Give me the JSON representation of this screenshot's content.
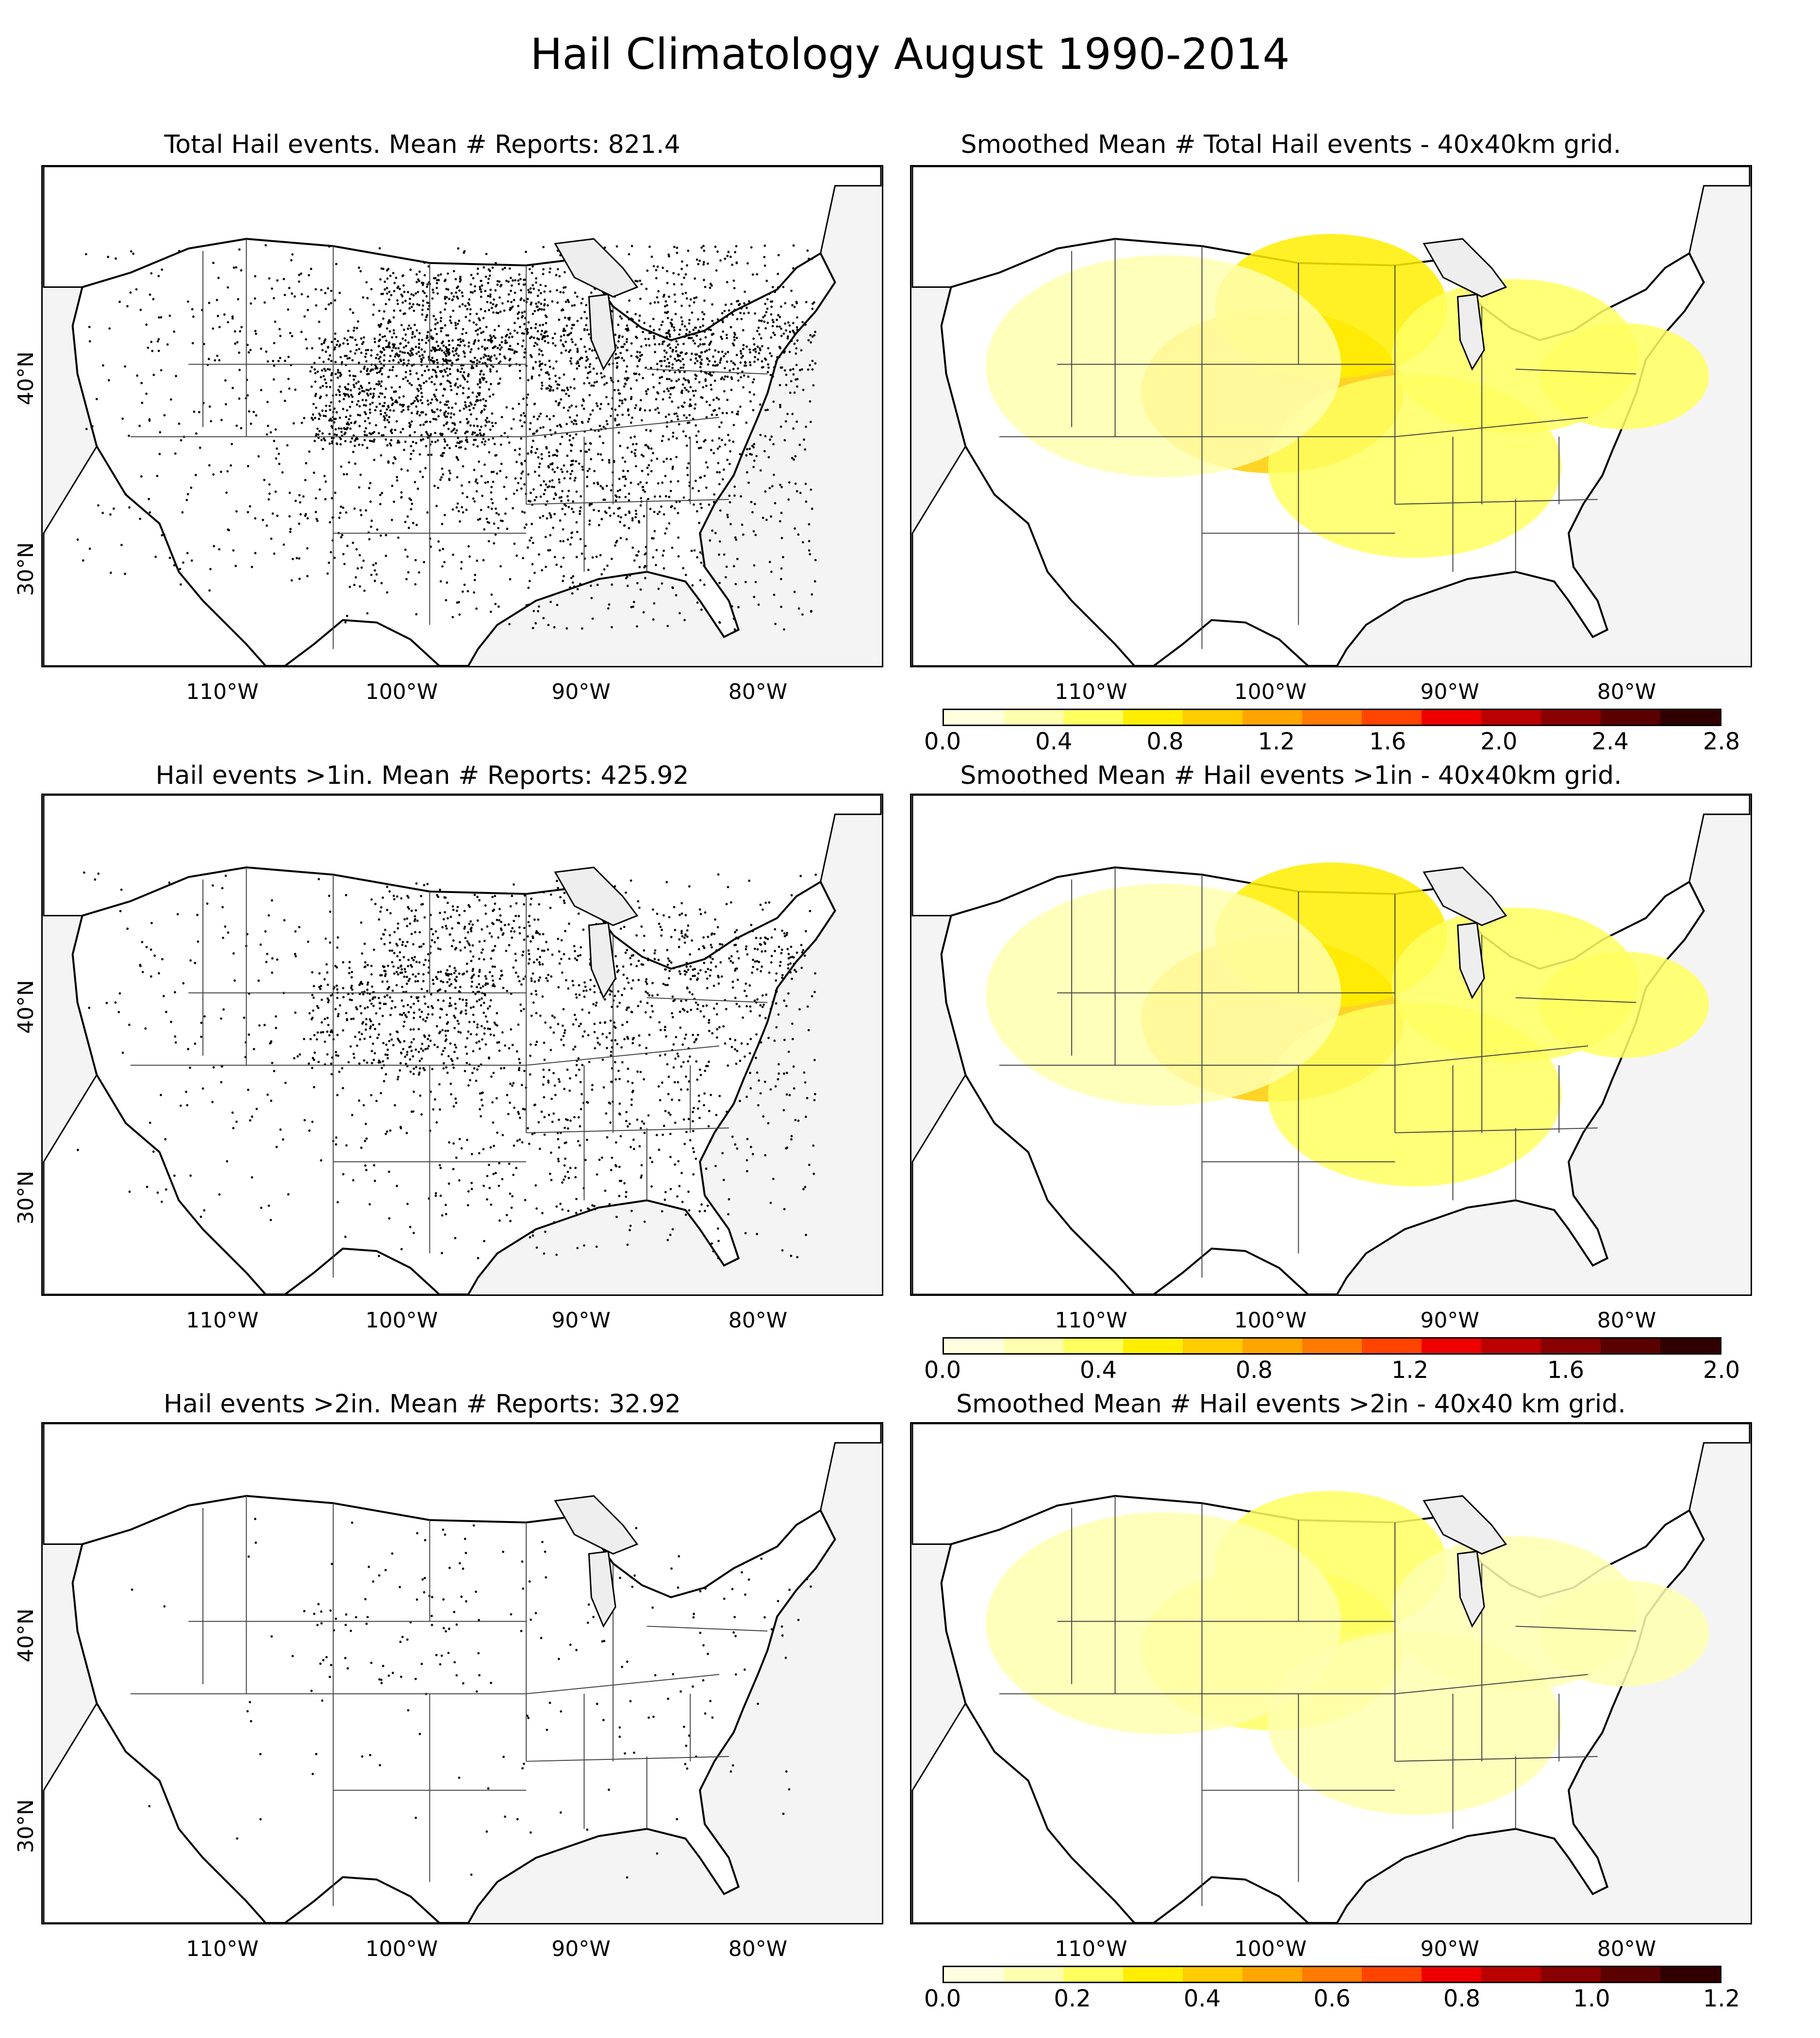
{
  "title": "Hail Climatology August 1990-2014",
  "panels": [
    {
      "title": "Total Hail events. Mean # Reports: 821.4",
      "kind": "points",
      "density": 1.0
    },
    {
      "title": "Smoothed Mean # Total Hail events - 40x40km grid.",
      "kind": "smooth",
      "colorbar": 0
    },
    {
      "title": "Hail events >1in. Mean # Reports: 425.92",
      "kind": "points",
      "density": 0.55
    },
    {
      "title": "Smoothed Mean # Hail events >1in - 40x40km grid.",
      "kind": "smooth",
      "colorbar": 1
    },
    {
      "title": "Hail events >2in. Mean # Reports: 32.92",
      "kind": "points",
      "density": 0.06
    },
    {
      "title": "Smoothed Mean # Hail events >2in - 40x40 km grid.",
      "kind": "smooth",
      "colorbar": 2
    }
  ],
  "x_ticks": [
    "110°W",
    "100°W",
    "90°W",
    "80°W"
  ],
  "y_ticks": [
    "40°N",
    "30°N"
  ],
  "colorbars": [
    {
      "ticks": [
        "0.0",
        "0.4",
        "0.8",
        "1.2",
        "1.6",
        "2.0",
        "2.4",
        "2.8"
      ],
      "max": 2.8
    },
    {
      "ticks": [
        "0.0",
        "0.4",
        "0.8",
        "1.2",
        "1.6",
        "2.0"
      ],
      "max": 2.0
    },
    {
      "ticks": [
        "0.0",
        "0.2",
        "0.4",
        "0.6",
        "0.8",
        "1.0",
        "1.2"
      ],
      "max": 1.2
    }
  ],
  "colormap": [
    "#ffffe0",
    "#ffffb0",
    "#ffff60",
    "#ffee00",
    "#ffcc00",
    "#ffa500",
    "#ff7a00",
    "#ff4400",
    "#ee0000",
    "#bb0000",
    "#880000",
    "#5a0000",
    "#300000"
  ]
}
